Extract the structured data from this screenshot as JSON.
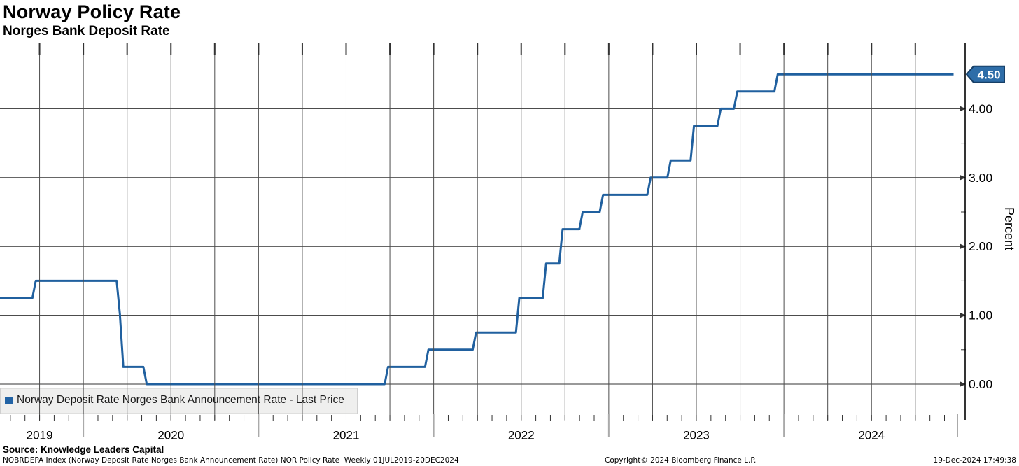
{
  "header": {
    "title": "Norway Policy Rate",
    "subtitle": "Norges Bank Deposit Rate"
  },
  "legend": {
    "swatch_color": "#2263a5",
    "label": "Norway Deposit Rate Norges Bank Announcement Rate - Last Price"
  },
  "footer": {
    "source": "Source: Knowledge Leaders Capital",
    "meta_left": "NOBRDEPA Index (Norway Deposit Rate Norges Bank Announcement Rate) NOR Policy Rate  Weekly 01JUL2019-20DEC2024",
    "meta_center": "Copyright© 2024 Bloomberg Finance L.P.",
    "meta_right": "19-Dec-2024 17:49:38"
  },
  "colors": {
    "line": "#20609f",
    "badge_fill": "#2e6da8",
    "badge_stroke": "#173f66",
    "badge_text": "#ffffff",
    "grid_vertical": "#4d4d4d",
    "grid_horizontal": "#333333",
    "axis": "#000000",
    "year_tick": "#aaaaaa",
    "legend_box_fill": "#efefee",
    "legend_box_stroke": "#cfcfcf"
  },
  "chart_data": {
    "type": "line",
    "line_style": "step",
    "title": "Norway Policy Rate",
    "subtitle": "Norges Bank Deposit Rate",
    "xlabel": "",
    "ylabel": "Percent",
    "x_range": [
      "2019-07-01",
      "2024-12-20"
    ],
    "frequency": "Weekly",
    "ylim": [
      -0.52,
      4.95
    ],
    "grid": "vertical quarterly + horizontal at each 1.00, monthly minor ticks on bottom axis",
    "legend_position": "bottom-left inside plot",
    "y_axis_side": "right",
    "y_ticks": [
      0,
      1,
      2,
      3,
      4
    ],
    "y_tick_labels": [
      "0.00",
      "1.00",
      "2.00",
      "3.00",
      "4.00"
    ],
    "y_minor_ticks": [
      0.5,
      1.5,
      2.5,
      3.5
    ],
    "x_tick_years": [
      "2019",
      "2020",
      "2021",
      "2022",
      "2023",
      "2024"
    ],
    "last_price": 4.5,
    "last_price_label": "4.50",
    "series": [
      {
        "name": "Norway Deposit Rate Norges Bank Announcement Rate - Last Price",
        "color": "#20609f",
        "points": [
          [
            "2019-07-01",
            1.25
          ],
          [
            "2019-09-20",
            1.5
          ],
          [
            "2020-03-13",
            1.0
          ],
          [
            "2020-03-20",
            0.25
          ],
          [
            "2020-05-08",
            0.0
          ],
          [
            "2021-09-24",
            0.25
          ],
          [
            "2021-12-17",
            0.5
          ],
          [
            "2022-03-25",
            0.75
          ],
          [
            "2022-06-24",
            1.25
          ],
          [
            "2022-08-19",
            1.75
          ],
          [
            "2022-09-23",
            2.25
          ],
          [
            "2022-11-04",
            2.5
          ],
          [
            "2022-12-16",
            2.75
          ],
          [
            "2023-03-24",
            3.0
          ],
          [
            "2023-05-05",
            3.25
          ],
          [
            "2023-06-23",
            3.75
          ],
          [
            "2023-08-18",
            4.0
          ],
          [
            "2023-09-22",
            4.25
          ],
          [
            "2023-12-15",
            4.5
          ],
          [
            "2024-12-20",
            4.5
          ]
        ]
      }
    ]
  }
}
